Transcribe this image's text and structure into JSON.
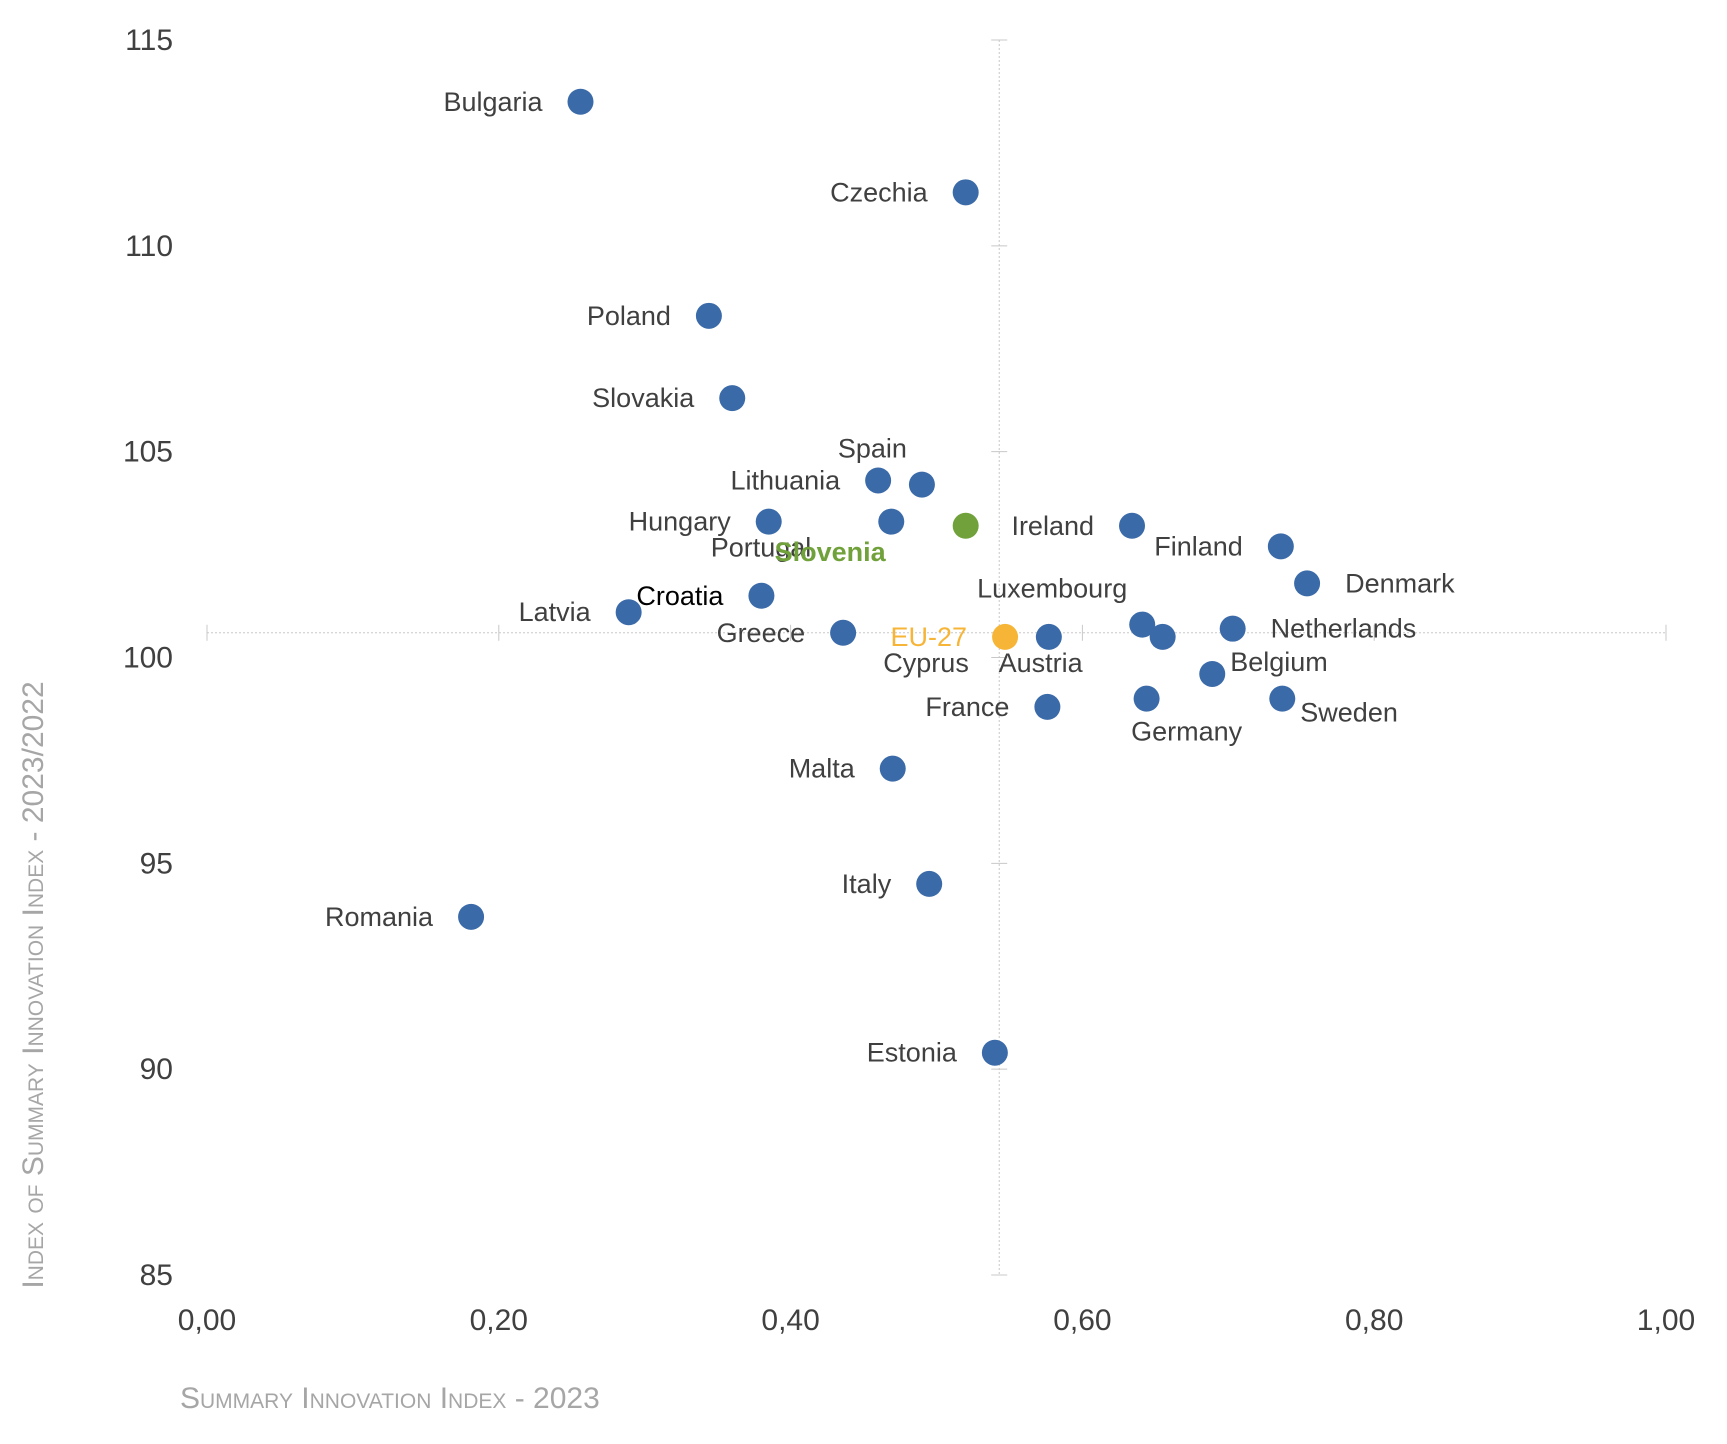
{
  "chart_data": {
    "type": "scatter",
    "title": "",
    "xlabel": "Summary Innovation Index - 2023",
    "ylabel": "Index of Summary Innovation Index - 2023/2022",
    "xlim": [
      0.0,
      1.0
    ],
    "ylim": [
      85,
      115
    ],
    "xticks": [
      0.0,
      0.2,
      0.4,
      0.6,
      0.8,
      1.0
    ],
    "xtick_labels": [
      "0,00",
      "0,20",
      "0,40",
      "0,60",
      "0,80",
      "1,00"
    ],
    "yticks": [
      85,
      90,
      95,
      100,
      105,
      110,
      115
    ],
    "ytick_labels": [
      "85",
      "90",
      "95",
      "100",
      "105",
      "110",
      "115"
    ],
    "axis_crossing": {
      "x": 0.543,
      "y": 100.6
    },
    "grid": false,
    "legend": "none",
    "colors": {
      "default": "#3b6aa8",
      "highlight_slovenia": "#70a13a",
      "eu_average": "#f7b538",
      "label_default": "#404040",
      "label_croatia": "#000000",
      "axis_title": "#a6a6a6",
      "crosshair": "#c8c8c8"
    },
    "points": [
      {
        "label": "Bulgaria",
        "x": 0.256,
        "y": 113.5,
        "color": "#3b6aa8",
        "label_side": "left"
      },
      {
        "label": "Czechia",
        "x": 0.52,
        "y": 111.3,
        "color": "#3b6aa8",
        "label_side": "left"
      },
      {
        "label": "Poland",
        "x": 0.344,
        "y": 108.3,
        "color": "#3b6aa8",
        "label_side": "left"
      },
      {
        "label": "Slovakia",
        "x": 0.36,
        "y": 106.3,
        "color": "#3b6aa8",
        "label_side": "left"
      },
      {
        "label": "Spain",
        "x": 0.49,
        "y": 104.2,
        "color": "#3b6aa8",
        "label_side": "above-left"
      },
      {
        "label": "Lithuania",
        "x": 0.46,
        "y": 104.3,
        "color": "#3b6aa8",
        "label_side": "left"
      },
      {
        "label": "Hungary",
        "x": 0.385,
        "y": 103.3,
        "color": "#3b6aa8",
        "label_side": "left"
      },
      {
        "label": "Portugal",
        "x": 0.469,
        "y": 103.3,
        "color": "#3b6aa8",
        "label_side": "below-left"
      },
      {
        "label": "Slovenia",
        "x": 0.52,
        "y": 103.2,
        "color": "#70a13a",
        "label_side": "below-left",
        "label_color": "#70a13a",
        "label_bold": true
      },
      {
        "label": "Ireland",
        "x": 0.634,
        "y": 103.2,
        "color": "#3b6aa8",
        "label_side": "left"
      },
      {
        "label": "Finland",
        "x": 0.736,
        "y": 102.7,
        "color": "#3b6aa8",
        "label_side": "left"
      },
      {
        "label": "Denmark",
        "x": 0.754,
        "y": 101.8,
        "color": "#3b6aa8",
        "label_side": "right"
      },
      {
        "label": "Croatia",
        "x": 0.38,
        "y": 101.5,
        "color": "#3b6aa8",
        "label_side": "left",
        "label_color": "#000000"
      },
      {
        "label": "Latvia",
        "x": 0.289,
        "y": 101.1,
        "color": "#3b6aa8",
        "label_side": "left"
      },
      {
        "label": "Greece",
        "x": 0.436,
        "y": 100.6,
        "color": "#3b6aa8",
        "label_side": "left"
      },
      {
        "label": "EU-27",
        "x": 0.547,
        "y": 100.5,
        "color": "#f7b538",
        "label_side": "left",
        "label_color": "#f7b538"
      },
      {
        "label": "Cyprus",
        "x": 0.577,
        "y": 100.5,
        "color": "#3b6aa8",
        "label_side": "below-left"
      },
      {
        "label": "Luxembourg",
        "x": 0.641,
        "y": 100.8,
        "color": "#3b6aa8",
        "label_side": "above-left"
      },
      {
        "label": "Austria",
        "x": 0.655,
        "y": 100.5,
        "color": "#3b6aa8",
        "label_side": "below-left"
      },
      {
        "label": "Netherlands",
        "x": 0.703,
        "y": 100.7,
        "color": "#3b6aa8",
        "label_side": "right"
      },
      {
        "label": "Belgium",
        "x": 0.689,
        "y": 99.6,
        "color": "#3b6aa8",
        "label_side": "above-right"
      },
      {
        "label": "France",
        "x": 0.576,
        "y": 98.8,
        "color": "#3b6aa8",
        "label_side": "left"
      },
      {
        "label": "Germany",
        "x": 0.644,
        "y": 99.0,
        "color": "#3b6aa8",
        "label_side": "below"
      },
      {
        "label": "Sweden",
        "x": 0.737,
        "y": 99.0,
        "color": "#3b6aa8",
        "label_side": "below-right"
      },
      {
        "label": "Malta",
        "x": 0.47,
        "y": 97.3,
        "color": "#3b6aa8",
        "label_side": "left"
      },
      {
        "label": "Italy",
        "x": 0.495,
        "y": 94.5,
        "color": "#3b6aa8",
        "label_side": "left"
      },
      {
        "label": "Romania",
        "x": 0.181,
        "y": 93.7,
        "color": "#3b6aa8",
        "label_side": "left"
      },
      {
        "label": "Estonia",
        "x": 0.54,
        "y": 90.4,
        "color": "#3b6aa8",
        "label_side": "left"
      }
    ]
  }
}
